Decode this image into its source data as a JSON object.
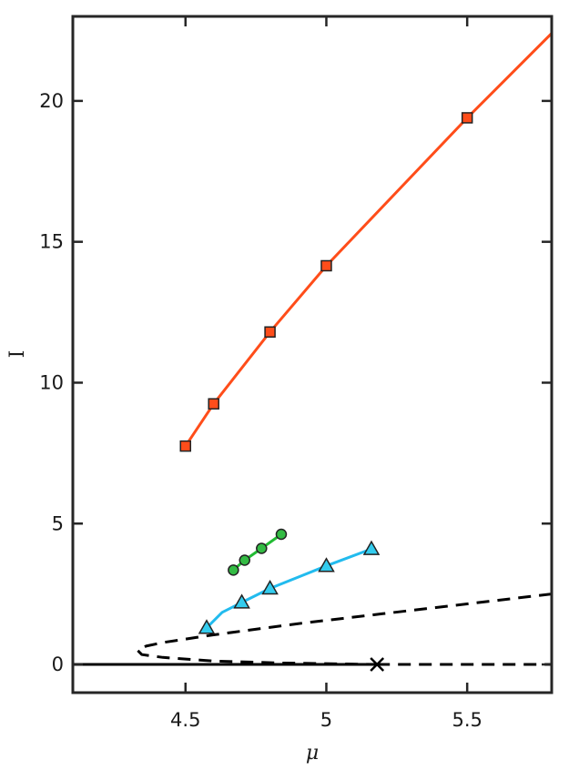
{
  "chart_data": {
    "type": "line",
    "title": "",
    "xlabel": "μ",
    "ylabel": "I",
    "xlim": [
      4.1,
      5.8
    ],
    "ylim": [
      -1,
      23
    ],
    "x_ticks": [
      {
        "value": 4.5,
        "label": "4.5"
      },
      {
        "value": 5.0,
        "label": "5"
      },
      {
        "value": 5.5,
        "label": "5.5"
      }
    ],
    "y_ticks": [
      {
        "value": 0,
        "label": "0"
      },
      {
        "value": 5,
        "label": "5"
      },
      {
        "value": 10,
        "label": "10"
      },
      {
        "value": 15,
        "label": "15"
      },
      {
        "value": 20,
        "label": "20"
      }
    ],
    "grid": false,
    "series": [
      {
        "color": "#ff4d1a",
        "marker": "square",
        "marker_fill": "#ff4d1a",
        "line_style": "solid",
        "line_x": [
          4.5,
          4.6,
          4.8,
          5.0,
          5.5,
          5.8
        ],
        "line_y": [
          7.75,
          9.25,
          11.8,
          14.15,
          19.4,
          22.4
        ],
        "marker_x": [
          4.5,
          4.6,
          4.8,
          5.0,
          5.5
        ],
        "marker_y": [
          7.75,
          9.25,
          11.8,
          14.15,
          19.4
        ]
      },
      {
        "color": "#22bb33",
        "marker": "circle",
        "marker_fill": "#33bb44",
        "line_style": "solid",
        "line_x": [
          4.67,
          4.71,
          4.77,
          4.84
        ],
        "line_y": [
          3.35,
          3.7,
          4.12,
          4.62
        ],
        "marker_x": [
          4.67,
          4.71,
          4.77,
          4.84
        ],
        "marker_y": [
          3.35,
          3.7,
          4.12,
          4.62
        ]
      },
      {
        "color": "#22bbee",
        "marker": "triangle",
        "marker_fill": "#33ccee",
        "line_style": "solid",
        "line_x": [
          4.575,
          4.63,
          4.7,
          4.8,
          4.9,
          5.0,
          5.16
        ],
        "line_y": [
          1.3,
          1.85,
          2.2,
          2.7,
          3.1,
          3.5,
          4.1
        ],
        "marker_x": [
          4.575,
          4.7,
          4.8,
          5.0,
          5.16
        ],
        "marker_y": [
          1.3,
          2.2,
          2.7,
          3.5,
          4.1
        ]
      },
      {
        "color": "#000000",
        "marker": "none",
        "line_style": "dashed",
        "line_x": [
          5.8,
          5.5,
          5.2,
          4.9,
          4.6,
          4.42,
          4.36,
          4.33,
          4.345,
          4.42,
          4.6,
          4.85,
          5.18
        ],
        "line_y": [
          2.5,
          2.15,
          1.8,
          1.45,
          1.05,
          0.78,
          0.65,
          0.5,
          0.35,
          0.25,
          0.12,
          0.05,
          0.0
        ],
        "marker_x": [],
        "marker_y": []
      },
      {
        "color": "#000000",
        "marker": "none",
        "line_style": "solid",
        "line_x": [
          4.1,
          5.18
        ],
        "line_y": [
          0,
          0
        ],
        "marker_x": [],
        "marker_y": []
      },
      {
        "color": "#000000",
        "marker": "none",
        "line_style": "dashed",
        "line_x": [
          5.18,
          5.8
        ],
        "line_y": [
          0,
          0
        ],
        "marker_x": [],
        "marker_y": []
      }
    ],
    "annotations": [
      {
        "type": "x-marker",
        "x": 5.18,
        "y": 0,
        "color": "#000000"
      }
    ]
  }
}
